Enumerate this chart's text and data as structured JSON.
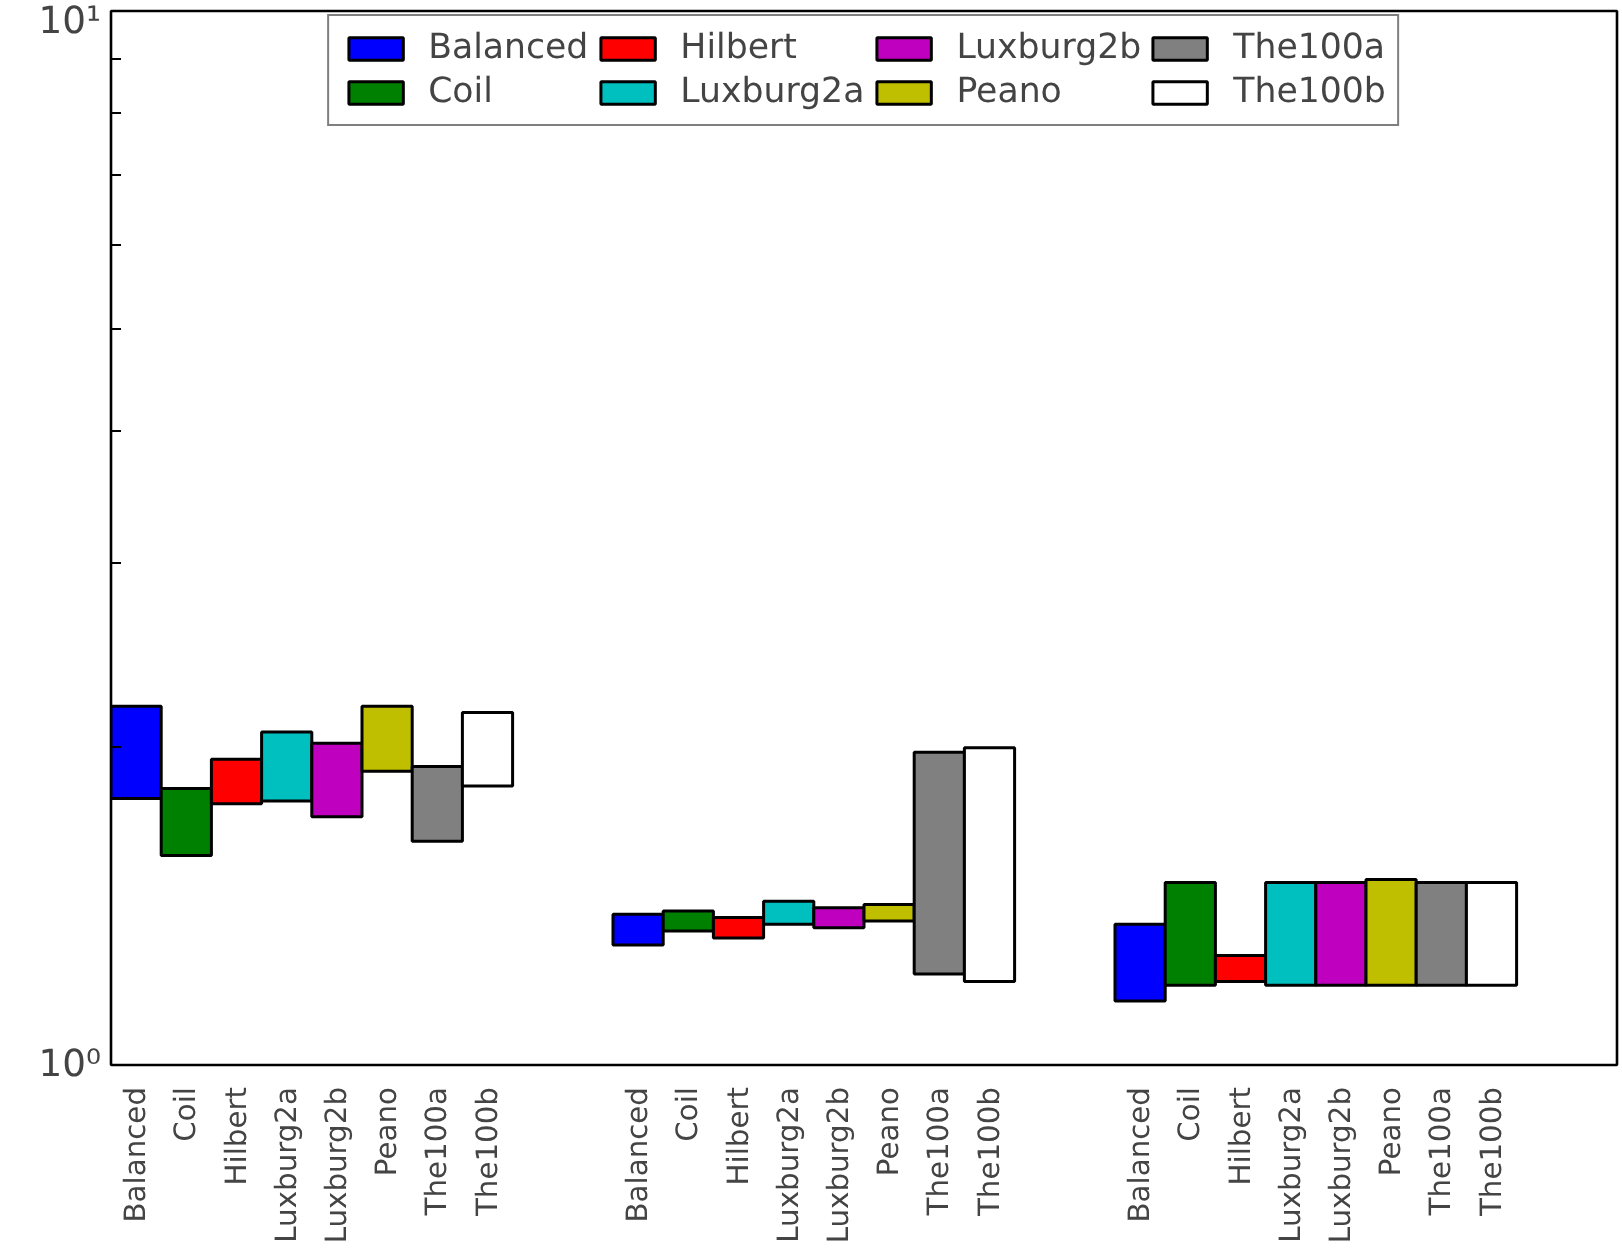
{
  "chart_data": {
    "type": "bar",
    "log": "y",
    "legend": "top",
    "grid": false,
    "categories": [
      "Balanced",
      "Coil",
      "Hilbert",
      "Luxburg2a",
      "Luxburg2b",
      "Peano",
      "The100a",
      "The100b",
      null,
      null,
      "Balanced",
      "Coil",
      "Hilbert",
      "Luxburg2a",
      "Luxburg2b",
      "Peano",
      "The100a",
      "The100b",
      null,
      null,
      "Balanced",
      "Coil",
      "Hilbert",
      "Luxburg2a",
      "Luxburg2b",
      "Peano",
      "The100a",
      "The100b",
      null,
      null
    ],
    "ylim": [
      1,
      10
    ],
    "yticks": [
      {
        "value": 1,
        "label": "10⁰"
      },
      {
        "value": 2,
        "label": null
      },
      {
        "value": 3,
        "label": null
      },
      {
        "value": 4,
        "label": null
      },
      {
        "value": 5,
        "label": null
      },
      {
        "value": 6,
        "label": null
      },
      {
        "value": 7,
        "label": null
      },
      {
        "value": 8,
        "label": null
      },
      {
        "value": 9,
        "label": null
      },
      {
        "value": 10,
        "label": "10¹"
      }
    ],
    "series": [
      {
        "name": "Balanced",
        "color": "#0000ff",
        "values": [
          0.4,
          null,
          null,
          null,
          null,
          null,
          null,
          null,
          null,
          null,
          0.09,
          null,
          null,
          null,
          null,
          null,
          null,
          null,
          null,
          null,
          0.21,
          null,
          null,
          null,
          null,
          null,
          null,
          null,
          null,
          null
        ],
        "base": [
          1.79,
          null,
          null,
          null,
          null,
          null,
          null,
          null,
          null,
          null,
          1.3,
          null,
          null,
          null,
          null,
          null,
          null,
          null,
          null,
          null,
          1.15,
          null,
          null,
          null,
          null,
          null,
          null,
          null,
          null,
          null
        ]
      },
      {
        "name": "Coil",
        "color": "#008000",
        "values": [
          null,
          0.25,
          null,
          null,
          null,
          null,
          null,
          null,
          null,
          null,
          null,
          0.06,
          null,
          null,
          null,
          null,
          null,
          null,
          null,
          null,
          null,
          0.3,
          null,
          null,
          null,
          null,
          null,
          null,
          null,
          null
        ],
        "base": [
          null,
          1.58,
          null,
          null,
          null,
          null,
          null,
          null,
          null,
          null,
          null,
          1.34,
          null,
          null,
          null,
          null,
          null,
          null,
          null,
          null,
          null,
          1.19,
          null,
          null,
          null,
          null,
          null,
          null,
          null,
          null
        ]
      },
      {
        "name": "Hilbert",
        "color": "#ff0000",
        "values": [
          null,
          null,
          0.18,
          null,
          null,
          null,
          null,
          null,
          null,
          null,
          null,
          null,
          0.06,
          null,
          null,
          null,
          null,
          null,
          null,
          null,
          null,
          null,
          0.07,
          null,
          null,
          null,
          null,
          null,
          null,
          null
        ],
        "base": [
          null,
          null,
          1.77,
          null,
          null,
          null,
          null,
          null,
          null,
          null,
          null,
          null,
          1.32,
          null,
          null,
          null,
          null,
          null,
          null,
          null,
          null,
          null,
          1.2,
          null,
          null,
          null,
          null,
          null,
          null,
          null
        ]
      },
      {
        "name": "Luxburg2a",
        "color": "#00bfbf",
        "values": [
          null,
          null,
          null,
          0.29,
          null,
          null,
          null,
          null,
          null,
          null,
          null,
          null,
          null,
          0.07,
          null,
          null,
          null,
          null,
          null,
          null,
          null,
          null,
          null,
          0.3,
          null,
          null,
          null,
          null,
          null,
          null
        ],
        "base": [
          null,
          null,
          null,
          1.78,
          null,
          null,
          null,
          null,
          null,
          null,
          null,
          null,
          null,
          1.36,
          null,
          null,
          null,
          null,
          null,
          null,
          null,
          null,
          null,
          1.19,
          null,
          null,
          null,
          null,
          null,
          null
        ]
      },
      {
        "name": "Luxburg2b",
        "color": "#bf00bf",
        "values": [
          null,
          null,
          null,
          null,
          0.3,
          null,
          null,
          null,
          null,
          null,
          null,
          null,
          null,
          null,
          0.06,
          null,
          null,
          null,
          null,
          null,
          null,
          null,
          null,
          null,
          0.3,
          null,
          null,
          null,
          null,
          null
        ],
        "base": [
          null,
          null,
          null,
          null,
          1.72,
          null,
          null,
          null,
          null,
          null,
          null,
          null,
          null,
          null,
          1.35,
          null,
          null,
          null,
          null,
          null,
          null,
          null,
          null,
          null,
          1.19,
          null,
          null,
          null,
          null,
          null
        ]
      },
      {
        "name": "Peano",
        "color": "#bfbf00",
        "values": [
          null,
          null,
          null,
          null,
          null,
          0.29,
          null,
          null,
          null,
          null,
          null,
          null,
          null,
          null,
          null,
          0.05,
          null,
          null,
          null,
          null,
          null,
          null,
          null,
          null,
          null,
          0.31,
          null,
          null,
          null,
          null
        ],
        "base": [
          null,
          null,
          null,
          null,
          null,
          1.9,
          null,
          null,
          null,
          null,
          null,
          null,
          null,
          null,
          null,
          1.37,
          null,
          null,
          null,
          null,
          null,
          null,
          null,
          null,
          null,
          1.19,
          null,
          null,
          null,
          null
        ]
      },
      {
        "name": "The100a",
        "color": "#808080",
        "values": [
          null,
          null,
          null,
          null,
          null,
          null,
          0.29,
          null,
          null,
          null,
          null,
          null,
          null,
          null,
          null,
          null,
          0.76,
          null,
          null,
          null,
          null,
          null,
          null,
          null,
          null,
          null,
          0.3,
          null,
          null,
          null
        ],
        "base": [
          null,
          null,
          null,
          null,
          null,
          null,
          1.63,
          null,
          null,
          null,
          null,
          null,
          null,
          null,
          null,
          null,
          1.22,
          null,
          null,
          null,
          null,
          null,
          null,
          null,
          null,
          null,
          1.19,
          null,
          null,
          null
        ]
      },
      {
        "name": "The100b",
        "color": "#ffffff",
        "values": [
          null,
          null,
          null,
          null,
          null,
          null,
          null,
          0.32,
          null,
          null,
          null,
          null,
          null,
          null,
          null,
          null,
          null,
          0.8,
          null,
          null,
          null,
          null,
          null,
          null,
          null,
          null,
          null,
          0.3,
          null,
          null
        ],
        "base": [
          null,
          null,
          null,
          null,
          null,
          null,
          null,
          1.84,
          null,
          null,
          null,
          null,
          null,
          null,
          null,
          null,
          null,
          1.2,
          null,
          null,
          null,
          null,
          null,
          null,
          null,
          null,
          null,
          1.19,
          null,
          null
        ]
      }
    ]
  }
}
